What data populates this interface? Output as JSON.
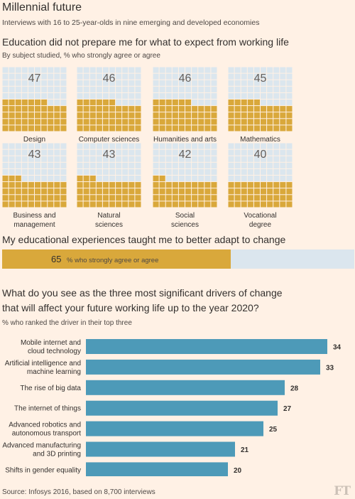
{
  "title": "Millennial future",
  "subtitle": "Interviews with 16 to 25-year-olds in nine emerging and developed economies",
  "colors": {
    "background": "#fff1e5",
    "gold": "#d9a83b",
    "grid_blue": "#dbe6ee",
    "bar_blue": "#4d9ab8"
  },
  "section1": {
    "title": "Education did not prepare me for what to expect from working life",
    "subtitle": "By subject studied, % who strongly agree or agree"
  },
  "section2": {
    "title": "My educational experiences taught me to better adapt to change",
    "value": "65",
    "value_label": "% who strongly agree or agree"
  },
  "section3": {
    "title_line1": "What do you see as the three most significant drivers of change",
    "title_line2": "that will affect your future working life up to the year 2020?",
    "subtitle": "% who ranked the driver in their top three"
  },
  "source": "Source: Infosys 2016, based on 8,700 interviews",
  "logo": "FT",
  "chart_data": [
    {
      "type": "waffle",
      "title": "Education did not prepare me for what to expect from working life",
      "subtitle": "By subject studied, % who strongly agree or agree",
      "categories": [
        [
          "Design"
        ],
        [
          "Computer sciences"
        ],
        [
          "Humanities and arts"
        ],
        [
          "Mathematics"
        ],
        [
          "Business and",
          "management"
        ],
        [
          "Natural",
          "sciences"
        ],
        [
          "Social",
          "sciences"
        ],
        [
          "Vocational",
          "degree"
        ]
      ],
      "values": [
        47,
        46,
        46,
        45,
        43,
        43,
        42,
        40
      ],
      "ylim": [
        0,
        100
      ]
    },
    {
      "type": "bar",
      "title": "My educational experiences taught me to better adapt to change",
      "categories": [
        "% who strongly agree or agree"
      ],
      "values": [
        65
      ],
      "ylim": [
        0,
        100
      ]
    },
    {
      "type": "bar",
      "orientation": "horizontal",
      "title": "What do you see as the three most significant drivers of change that will affect your future working life up to the year 2020?",
      "subtitle": "% who ranked the driver in their top three",
      "categories": [
        [
          "Mobile internet and",
          "cloud technology"
        ],
        [
          "Artificial intelligence and",
          "machine learning"
        ],
        [
          "The rise of big data"
        ],
        [
          "The internet of things"
        ],
        [
          "Advanced robotics and",
          "autonomous transport"
        ],
        [
          "Advanced manufacturing",
          "and 3D printing"
        ],
        [
          "Shifts in gender equality"
        ]
      ],
      "values": [
        34,
        33,
        28,
        27,
        25,
        21,
        20
      ],
      "ylim": [
        0,
        34
      ]
    }
  ]
}
